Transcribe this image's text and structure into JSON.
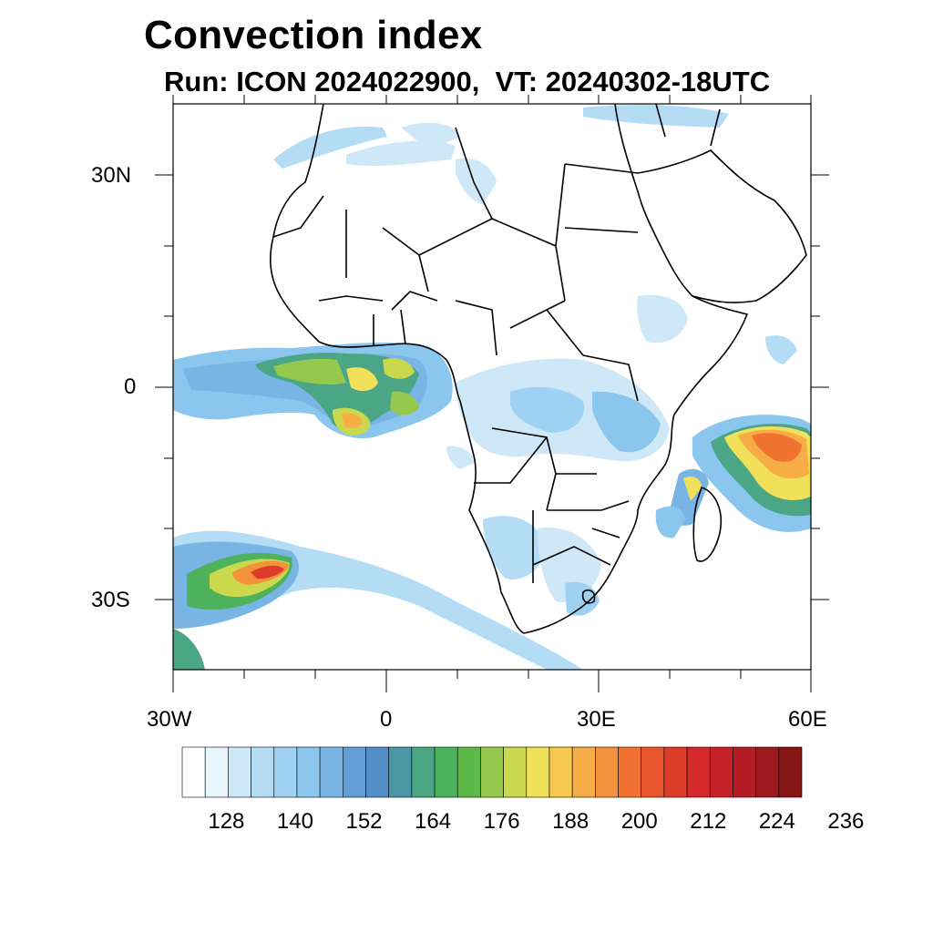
{
  "title": "Convection index",
  "subtitle": "Run: ICON 2024022900,  VT: 20240302-18UTC",
  "map": {
    "lon_range": [
      -30,
      60
    ],
    "lat_range": [
      -40,
      40
    ],
    "lat_labels": [
      "30N",
      "0",
      "30S"
    ],
    "lon_labels": [
      "30W",
      "0",
      "30E",
      "60E"
    ],
    "land_outline_color": "#000000"
  },
  "colorbar": {
    "colors": [
      "#ffffff",
      "#e8f4fc",
      "#cfe8f8",
      "#b4dcf5",
      "#9fd2f2",
      "#8bc6ee",
      "#78b5e4",
      "#639fd6",
      "#5490c8",
      "#4a97a6",
      "#4aa685",
      "#4eb25c",
      "#5cba48",
      "#96c84e",
      "#c9d84c",
      "#f0e05a",
      "#f7c84e",
      "#f6ad45",
      "#f4923c",
      "#f07332",
      "#e9552c",
      "#de3c2b",
      "#d52a2c",
      "#c62229",
      "#b31d23",
      "#9c1a1f",
      "#861515"
    ],
    "tick_labels": [
      "128",
      "140",
      "152",
      "164",
      "176",
      "188",
      "200",
      "212",
      "224",
      "236"
    ]
  }
}
